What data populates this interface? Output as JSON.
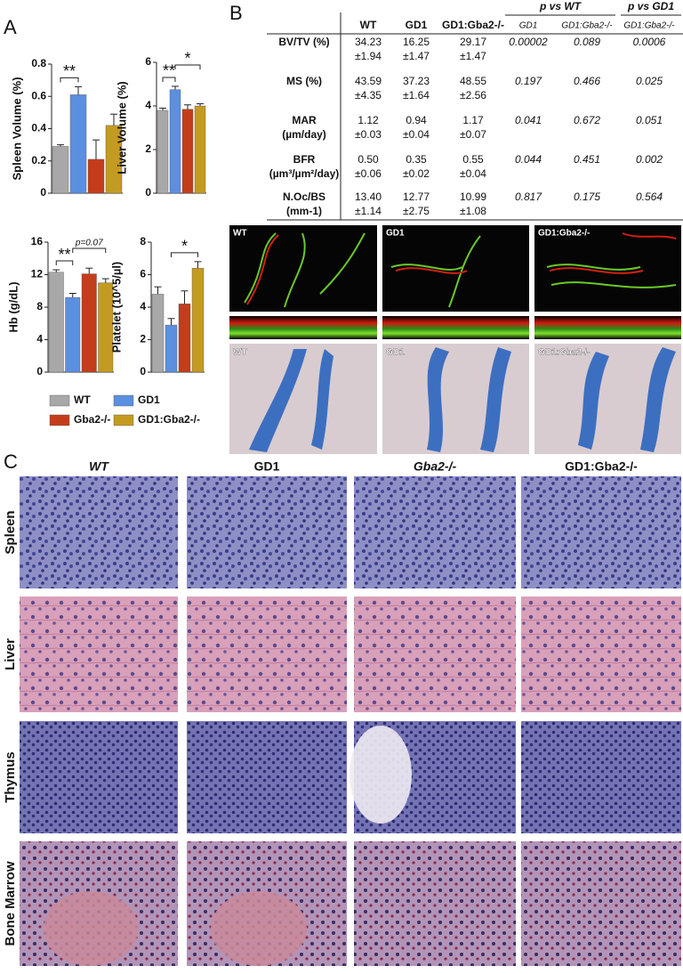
{
  "panel_labels": [
    "A",
    "B",
    "C"
  ],
  "legend": [
    {
      "name": "WT",
      "color": "#a8a8a8"
    },
    {
      "name": "GD1",
      "color": "#5b8fe0"
    },
    {
      "name": "Gba2-/-",
      "color": "#c43d1a"
    },
    {
      "name": "GD1:Gba2-/-",
      "color": "#c49a22"
    }
  ],
  "chart_data": [
    {
      "type": "bar",
      "ylabel": "Spleen Volume (%)",
      "categories": [
        null,
        null,
        null,
        null
      ],
      "values": [
        0.29,
        0.61,
        0.21,
        0.42
      ],
      "errors": [
        0.01,
        0.05,
        0.12,
        0.07
      ],
      "ylim": [
        0,
        0.8
      ],
      "yticks": [
        0,
        0.2,
        0.4,
        0.6,
        0.8
      ],
      "annotations": [
        {
          "label": "**",
          "from": 0,
          "to": 1
        }
      ]
    },
    {
      "type": "bar",
      "ylabel": "Liver Volume (%)",
      "categories": [
        null,
        null,
        null,
        null
      ],
      "values": [
        3.8,
        4.75,
        3.85,
        4.0
      ],
      "errors": [
        0.1,
        0.15,
        0.2,
        0.1
      ],
      "ylim": [
        0,
        6
      ],
      "yticks": [
        0,
        2,
        4,
        6
      ],
      "annotations": [
        {
          "label": "**",
          "from": 0,
          "to": 1
        },
        {
          "label": "*",
          "from": 1,
          "to": 3
        }
      ]
    },
    {
      "type": "bar",
      "ylabel": "Hb (g/dL)",
      "categories": [
        null,
        null,
        null,
        null
      ],
      "values": [
        12.3,
        9.2,
        12.1,
        11.0
      ],
      "errors": [
        0.3,
        0.5,
        0.7,
        0.5
      ],
      "ylim": [
        0,
        16
      ],
      "yticks": [
        0,
        4,
        8,
        12,
        16
      ],
      "annotations": [
        {
          "label": "**",
          "from": 0,
          "to": 1
        },
        {
          "label": "p=0.07",
          "from": 1,
          "to": 3
        }
      ]
    },
    {
      "type": "bar",
      "ylabel": "Platelet (10^5/µl)",
      "categories": [
        null,
        null,
        null,
        null
      ],
      "values": [
        4.8,
        2.9,
        4.2,
        6.4
      ],
      "errors": [
        0.45,
        0.4,
        0.8,
        0.4
      ],
      "ylim": [
        0,
        8
      ],
      "yticks": [
        0,
        2,
        4,
        6,
        8
      ],
      "annotations": [
        {
          "label": "*",
          "from": 1,
          "to": 3
        }
      ]
    }
  ],
  "table": {
    "columns": [
      "WT",
      "GD1",
      "GD1:Gba2-/-"
    ],
    "p_groups": [
      {
        "label": "p vs WT",
        "columns": [
          "GD1",
          "GD1:Gba2-/-"
        ]
      },
      {
        "label": "p vs GD1",
        "columns": [
          "GD1:Gba2-/-"
        ]
      }
    ],
    "rows": [
      {
        "label": [
          "BV/TV (%)"
        ],
        "values": [
          [
            "34.23",
            "±1.94"
          ],
          [
            "16.25",
            "±1.47"
          ],
          [
            "29.17",
            "±1.47"
          ]
        ],
        "p": [
          "0.00002",
          "0.089",
          "0.0006"
        ]
      },
      {
        "label": [
          "MS (%)"
        ],
        "values": [
          [
            "43.59",
            "±4.35"
          ],
          [
            "37.23",
            "±1.64"
          ],
          [
            "48.55",
            "±2.56"
          ]
        ],
        "p": [
          "0.197",
          "0.466",
          "0.025"
        ]
      },
      {
        "label": [
          "MAR",
          "(µm/day)"
        ],
        "values": [
          [
            "1.12",
            "±0.03"
          ],
          [
            "0.94",
            "±0.04"
          ],
          [
            "1.17",
            "±0.07"
          ]
        ],
        "p": [
          "0.041",
          "0.672",
          "0.051"
        ]
      },
      {
        "label": [
          "BFR",
          "(µm³/µm²/day)"
        ],
        "values": [
          [
            "0.50",
            "±0.06"
          ],
          [
            "0.35",
            "±0.02"
          ],
          [
            "0.55",
            "±0.04"
          ]
        ],
        "p": [
          "0.044",
          "0.451",
          "0.002"
        ]
      },
      {
        "label": [
          "N.Oc/BS",
          "(mm-1)"
        ],
        "values": [
          [
            "13.40",
            "±1.14"
          ],
          [
            "12.77",
            "±2.75"
          ],
          [
            "10.99",
            "±1.08"
          ]
        ],
        "p": [
          "0.817",
          "0.175",
          "0.564"
        ]
      }
    ]
  },
  "micrographs": {
    "fluorescence": [
      "WT",
      "GD1",
      "GD1:Gba2-/-"
    ],
    "trichrome": [
      "WT",
      "GD1",
      "GD1:Gba2-/-"
    ]
  },
  "histology": {
    "columns": [
      "WT",
      "GD1",
      "Gba2-/-",
      "GD1:Gba2-/-"
    ],
    "rows": [
      "Spleen",
      "Liver",
      "Thymus",
      "Bone Marrow"
    ]
  }
}
